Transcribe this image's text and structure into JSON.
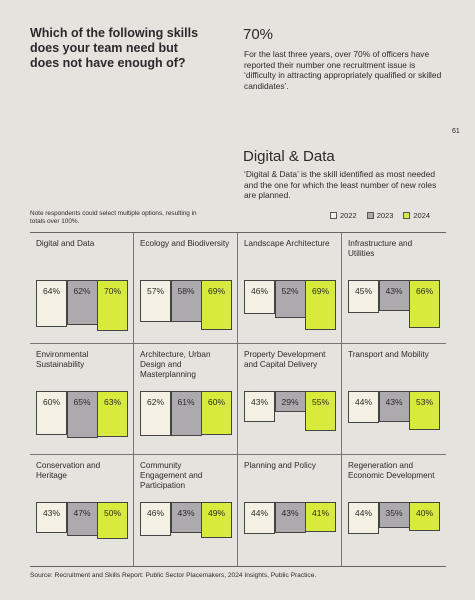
{
  "header": {
    "question": "Which of the following skills does your team need but does not have enough of?"
  },
  "stat": {
    "figure": "70%",
    "text": "For the last three years, over 70% of officers have reported their number one recruitment issue is ‘difficulty in attracting appropriately qualified or skilled candidates’."
  },
  "highlight": {
    "title": "Digital & Data",
    "text": "‘Digital & Data’ is the skill identified as most needed and the one for which the least number of new roles are planned."
  },
  "page_number": "61",
  "note": "Note respondents could select multiple options, resulting in totals over 100%.",
  "source": "Source: Recruitment and Skills Report: Public Sector Placemakers, 2024 Insights, Public Practice.",
  "chart_data": {
    "type": "bar",
    "categories": [
      "Digital and Data",
      "Ecology and Biodiversity",
      "Landscape Architecture",
      "Infrastructure and Utilities",
      "Environmental Sustainability",
      "Architecture, Urban Design and Masterplanning",
      "Property Development and Capital Delivery",
      "Transport and Mobility",
      "Conservation and Heritage",
      "Community Engagement and Participation",
      "Planning and Policy",
      "Regeneration and Economic Development"
    ],
    "series": [
      {
        "name": "2022",
        "color": "#f4f0e3",
        "values": [
          64,
          57,
          46,
          45,
          60,
          62,
          43,
          44,
          43,
          46,
          44,
          44
        ],
        "value_labels": [
          "64%",
          "57%",
          "46%",
          "45%",
          "60%",
          "62%",
          "43%",
          "44%",
          "43%",
          "46%",
          "44%",
          "44%"
        ]
      },
      {
        "name": "2023",
        "color": "#adaaad",
        "values": [
          62,
          58,
          52,
          43,
          65,
          61,
          29,
          43,
          47,
          43,
          43,
          35
        ],
        "value_labels": [
          "62%",
          "58%",
          "52%",
          "43%",
          "65%",
          "61%",
          "29%",
          "43%",
          "47%",
          "43%",
          "43%",
          "35%"
        ]
      },
      {
        "name": "2024",
        "color": "#d8eb3c",
        "values": [
          70,
          69,
          69,
          66,
          63,
          60,
          55,
          53,
          50,
          49,
          41,
          40
        ],
        "value_labels": [
          "70%",
          "69%",
          "69%",
          "66%",
          "63%",
          "60%",
          "55%",
          "53%",
          "50%",
          "49%",
          "41%",
          "40%"
        ]
      }
    ]
  }
}
